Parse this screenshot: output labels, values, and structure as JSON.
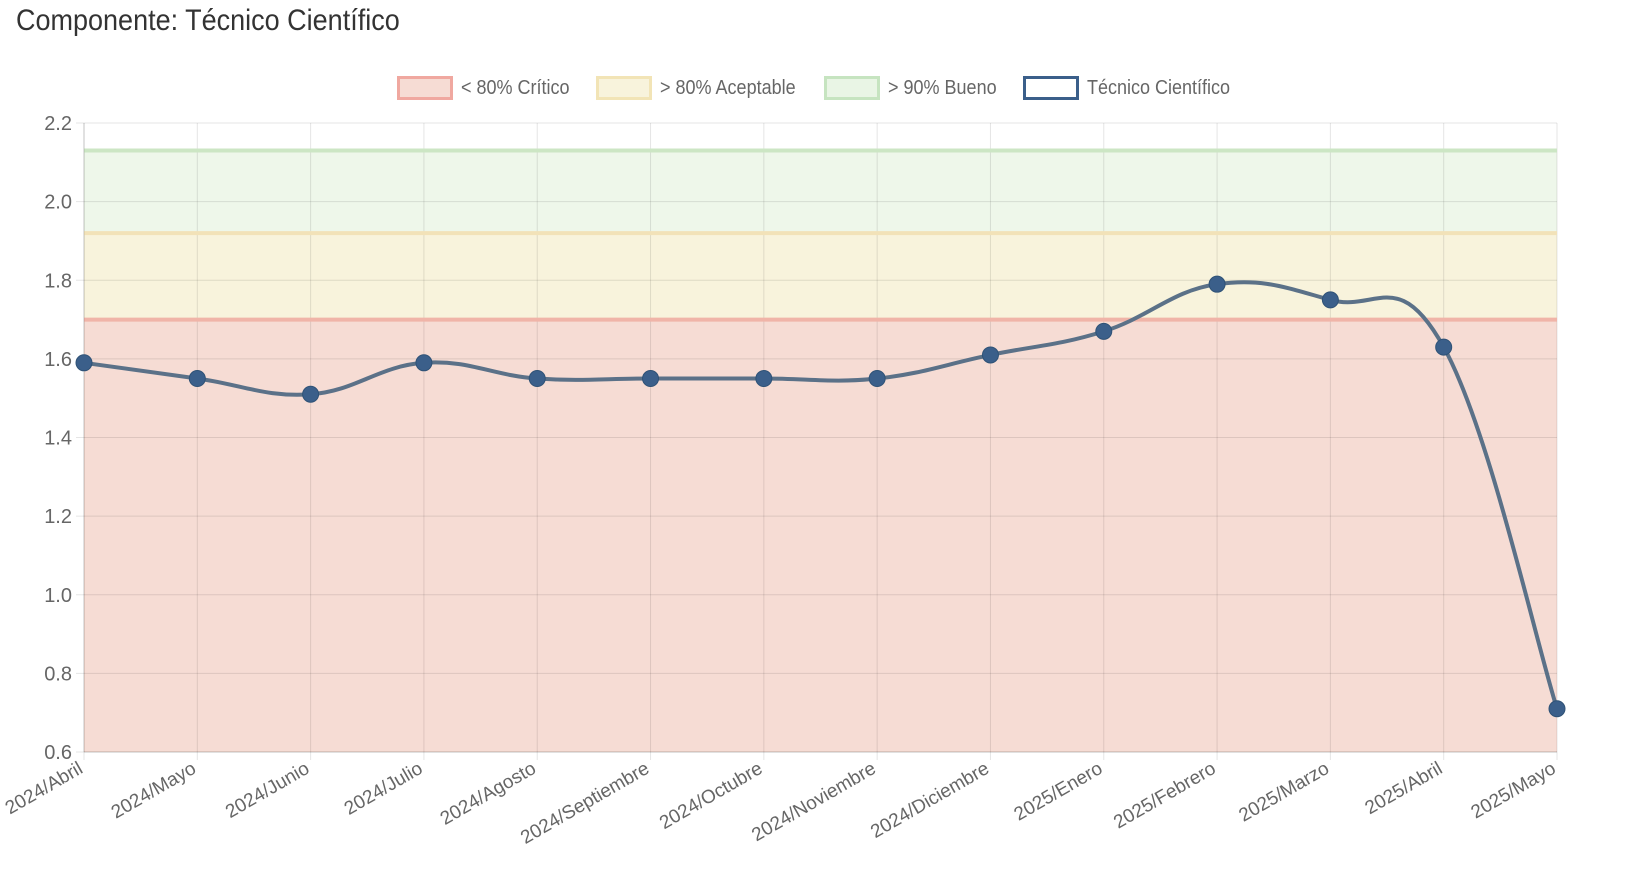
{
  "title": "Componente: Técnico Científico",
  "legend": [
    {
      "label": "< 80% Crítico",
      "fill": "#f6dcd4",
      "border": "#f0a8a0"
    },
    {
      "label": "> 80% Aceptable",
      "fill": "#f8f3dc",
      "border": "#f2e4b6"
    },
    {
      "label": "> 90% Bueno",
      "fill": "#e9f5e5",
      "border": "#c6e4c0"
    },
    {
      "label": "Técnico Científico",
      "fill": "#ffffff",
      "border": "#3b5f8a"
    }
  ],
  "chart_data": {
    "type": "line",
    "title": "Componente: Técnico Científico",
    "categories": [
      "2024/Abril",
      "2024/Mayo",
      "2024/Junio",
      "2024/Julio",
      "2024/Agosto",
      "2024/Septiembre",
      "2024/Octubre",
      "2024/Noviembre",
      "2024/Diciembre",
      "2025/Enero",
      "2025/Febrero",
      "2025/Marzo",
      "2025/Abril",
      "2025/Mayo"
    ],
    "series": [
      {
        "name": "Técnico Científico",
        "color": "#3b5f8a",
        "values": [
          1.59,
          1.55,
          1.51,
          1.59,
          1.55,
          1.55,
          1.55,
          1.55,
          1.61,
          1.67,
          1.79,
          1.75,
          1.63,
          0.71
        ]
      }
    ],
    "bands": [
      {
        "name": "< 80% Crítico",
        "from": 0.6,
        "to": 1.7,
        "fill": "#f6dcd4",
        "line": "#f0b4a8"
      },
      {
        "name": "> 80% Aceptable",
        "from": 1.7,
        "to": 1.92,
        "fill": "#f8f3dc",
        "line": "#f2e2b8"
      },
      {
        "name": "> 90% Bueno",
        "from": 1.92,
        "to": 2.13,
        "fill": "#eef7ea",
        "line": "#cce6c4"
      }
    ],
    "yticks": [
      "0.6",
      "0.8",
      "1.0",
      "1.2",
      "1.4",
      "1.6",
      "1.8",
      "2.0",
      "2.2"
    ],
    "ylim": [
      0.6,
      2.2
    ],
    "grid": true,
    "legend_position": "top"
  }
}
